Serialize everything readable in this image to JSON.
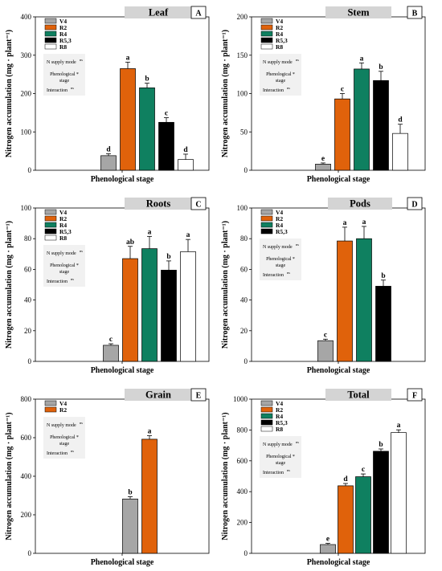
{
  "colors": {
    "V4": "#a6a6a6",
    "R2": "#e0620b",
    "R4": "#0f8060",
    "R5,3": "#000000",
    "R8": "#ffffff",
    "title_box": "#d4d4d4",
    "stats_box": "#f1f1f1"
  },
  "stats_text": {
    "n_supply": "N supply mode",
    "ns": "ns",
    "phen_line1": "Phenological *",
    "phen_line2": "stage",
    "interaction": "Interaction"
  },
  "chart_data": [
    {
      "type": "bar",
      "title": "Leaf",
      "letter": "A",
      "xlabel": "Phenological stage",
      "ylabel": "Nitrogen accumulation (mg · plant⁻¹)",
      "ylim": [
        0,
        400
      ],
      "yticks": [
        0,
        100,
        200,
        300,
        400
      ],
      "categories": [
        "V4",
        "R2",
        "R4",
        "R5,3",
        "R8"
      ],
      "values": [
        38,
        265,
        215,
        125,
        28
      ],
      "errors": [
        5,
        17,
        12,
        12,
        14
      ],
      "significance": [
        "d",
        "a",
        "b",
        "c",
        "d"
      ]
    },
    {
      "type": "bar",
      "title": "Stem",
      "letter": "B",
      "xlabel": "Phenological stage",
      "ylabel": "Nitrogen accumulation (mg · plant⁻¹)",
      "ylim": [
        0,
        200
      ],
      "yticks": [
        0,
        50,
        100,
        150,
        200
      ],
      "categories": [
        "V4",
        "R2",
        "R4",
        "R5,3",
        "R8"
      ],
      "values": [
        8,
        93,
        132,
        117,
        48
      ],
      "errors": [
        1.5,
        7,
        8,
        12,
        12
      ],
      "significance": [
        "e",
        "c",
        "a",
        "b",
        "d"
      ]
    },
    {
      "type": "bar",
      "title": "Roots",
      "letter": "C",
      "xlabel": "Phenological stage",
      "ylabel": "Nitrogen accumulation (mg · plant⁻¹)",
      "ylim": [
        0,
        100
      ],
      "yticks": [
        0,
        20,
        40,
        60,
        80,
        100
      ],
      "categories": [
        "V4",
        "R2",
        "R4",
        "R5,3",
        "R8"
      ],
      "values": [
        10.5,
        67,
        73.5,
        59.5,
        71.5
      ],
      "errors": [
        1,
        8,
        8,
        6,
        8
      ],
      "significance": [
        "c",
        "ab",
        "a",
        "b",
        "a"
      ]
    },
    {
      "type": "bar",
      "title": "Pods",
      "letter": "D",
      "xlabel": "Phenological stage",
      "ylabel": "Nitrogen accumulation (mg · plant⁻¹)",
      "ylim": [
        0,
        100
      ],
      "yticks": [
        0,
        20,
        40,
        60,
        80,
        100
      ],
      "categories": [
        "V4",
        "R2",
        "R4",
        "R5,3"
      ],
      "values": [
        13.5,
        78.5,
        80,
        49
      ],
      "errors": [
        1,
        9,
        8,
        4
      ],
      "significance": [
        "c",
        "a",
        "a",
        "b"
      ]
    },
    {
      "type": "bar",
      "title": "Grain",
      "letter": "E",
      "xlabel": "Phenological stage",
      "ylabel": "Nitrogen accumulation (mg · plant⁻¹)",
      "ylim": [
        0,
        800
      ],
      "yticks": [
        0,
        200,
        400,
        600,
        800
      ],
      "categories": [
        "V4",
        "R2"
      ],
      "values": [
        282,
        592
      ],
      "errors": [
        12,
        18
      ],
      "significance": [
        "b",
        "a"
      ]
    },
    {
      "type": "bar",
      "title": "Total",
      "letter": "F",
      "xlabel": "Phenological stage",
      "ylabel": "Nitrogen accumulation (mg · plant⁻¹)",
      "ylim": [
        0,
        1000
      ],
      "yticks": [
        0,
        200,
        400,
        600,
        800,
        1000
      ],
      "categories": [
        "V4",
        "R2",
        "R4",
        "R5,3",
        "R8"
      ],
      "values": [
        57,
        438,
        497,
        662,
        783
      ],
      "errors": [
        8,
        15,
        18,
        15,
        18
      ],
      "significance": [
        "e",
        "d",
        "c",
        "b",
        "a"
      ]
    }
  ]
}
